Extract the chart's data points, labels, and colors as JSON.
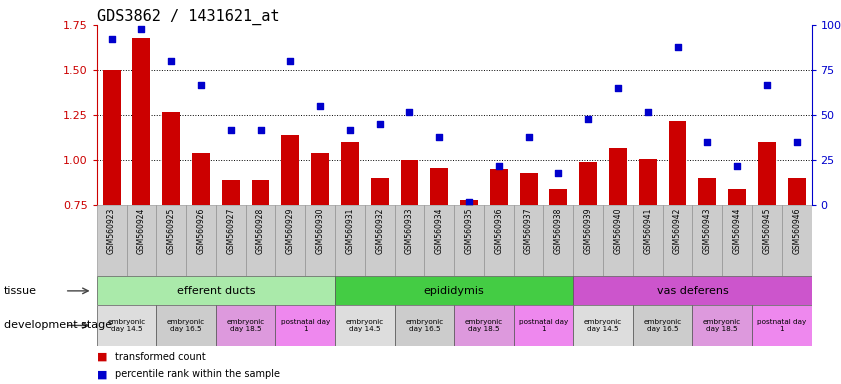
{
  "title": "GDS3862 / 1431621_at",
  "samples": [
    "GSM560923",
    "GSM560924",
    "GSM560925",
    "GSM560926",
    "GSM560927",
    "GSM560928",
    "GSM560929",
    "GSM560930",
    "GSM560931",
    "GSM560932",
    "GSM560933",
    "GSM560934",
    "GSM560935",
    "GSM560936",
    "GSM560937",
    "GSM560938",
    "GSM560939",
    "GSM560940",
    "GSM560941",
    "GSM560942",
    "GSM560943",
    "GSM560944",
    "GSM560945",
    "GSM560946"
  ],
  "bar_values": [
    1.5,
    1.68,
    1.27,
    1.04,
    0.89,
    0.89,
    1.14,
    1.04,
    1.1,
    0.9,
    1.0,
    0.96,
    0.78,
    0.95,
    0.93,
    0.84,
    0.99,
    1.07,
    1.01,
    1.22,
    0.9,
    0.84,
    1.1,
    0.9
  ],
  "scatter_values": [
    92,
    98,
    80,
    67,
    42,
    42,
    80,
    55,
    42,
    45,
    52,
    38,
    2,
    22,
    38,
    18,
    48,
    65,
    52,
    88,
    35,
    22,
    67,
    35
  ],
  "bar_color": "#cc0000",
  "scatter_color": "#0000cc",
  "ylim_left": [
    0.75,
    1.75
  ],
  "ylim_right": [
    0,
    100
  ],
  "yticks_left": [
    0.75,
    1.0,
    1.25,
    1.5,
    1.75
  ],
  "yticks_right": [
    0,
    25,
    50,
    75,
    100
  ],
  "hlines": [
    1.0,
    1.25,
    1.5
  ],
  "tissue_groups": [
    {
      "label": "efferent ducts",
      "start": 0,
      "end": 8,
      "color": "#aaeaaa"
    },
    {
      "label": "epididymis",
      "start": 8,
      "end": 16,
      "color": "#44cc44"
    },
    {
      "label": "vas deferens",
      "start": 16,
      "end": 24,
      "color": "#cc55cc"
    }
  ],
  "dev_stage_groups": [
    {
      "label": "embryonic\nday 14.5",
      "start": 0,
      "end": 2,
      "color": "#dddddd"
    },
    {
      "label": "embryonic\nday 16.5",
      "start": 2,
      "end": 4,
      "color": "#cccccc"
    },
    {
      "label": "embryonic\nday 18.5",
      "start": 4,
      "end": 6,
      "color": "#dd99dd"
    },
    {
      "label": "postnatal day\n1",
      "start": 6,
      "end": 8,
      "color": "#ee88ee"
    },
    {
      "label": "embryonic\nday 14.5",
      "start": 8,
      "end": 10,
      "color": "#dddddd"
    },
    {
      "label": "embryonic\nday 16.5",
      "start": 10,
      "end": 12,
      "color": "#cccccc"
    },
    {
      "label": "embryonic\nday 18.5",
      "start": 12,
      "end": 14,
      "color": "#dd99dd"
    },
    {
      "label": "postnatal day\n1",
      "start": 14,
      "end": 16,
      "color": "#ee88ee"
    },
    {
      "label": "embryonic\nday 14.5",
      "start": 16,
      "end": 18,
      "color": "#dddddd"
    },
    {
      "label": "embryonic\nday 16.5",
      "start": 18,
      "end": 20,
      "color": "#cccccc"
    },
    {
      "label": "embryonic\nday 18.5",
      "start": 20,
      "end": 22,
      "color": "#dd99dd"
    },
    {
      "label": "postnatal day\n1",
      "start": 22,
      "end": 24,
      "color": "#ee88ee"
    }
  ],
  "legend_bar_label": "transformed count",
  "legend_scatter_label": "percentile rank within the sample",
  "tissue_label": "tissue",
  "dev_stage_label": "development stage",
  "plot_bg": "#ffffff",
  "xtick_bg": "#cccccc",
  "sample_fontsize": 5.5,
  "axis_label_fontsize": 8,
  "title_fontsize": 11
}
